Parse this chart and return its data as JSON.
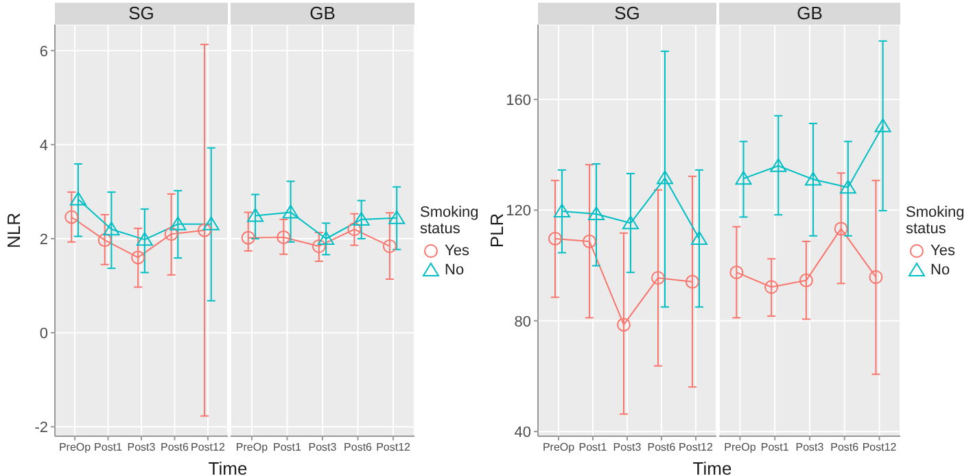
{
  "chart_data": [
    {
      "type": "line",
      "title": "SG",
      "xlabel": "Time",
      "ylabel": "NLR",
      "categories": [
        "PreOp",
        "Post1",
        "Post3",
        "Post6",
        "Post12"
      ],
      "ylim": [
        -2.2,
        6.55
      ],
      "yticks": [
        -2,
        0,
        2,
        4,
        6
      ],
      "grid": true,
      "legend": false,
      "line_style": "solid",
      "series": [
        {
          "color": "#f8766d",
          "marker": "circle",
          "values": [
            2.46,
            1.97,
            1.6,
            2.1,
            2.18
          ],
          "errors": [
            [
              1.93,
              2.99
            ],
            [
              1.45,
              2.51
            ],
            [
              0.97,
              2.22
            ],
            [
              1.23,
              2.95
            ],
            [
              -1.77,
              6.13
            ]
          ]
        },
        {
          "color": "#00bfc4",
          "marker": "triangle",
          "values": [
            2.84,
            2.2,
            1.98,
            2.31,
            2.31
          ],
          "errors": [
            [
              2.05,
              3.59
            ],
            [
              1.37,
              2.99
            ],
            [
              1.28,
              2.63
            ],
            [
              1.59,
              3.02
            ],
            [
              0.68,
              3.93
            ]
          ]
        }
      ]
    },
    {
      "type": "line",
      "title": "GB",
      "legend_title": "Smoking status",
      "categories": [
        "PreOp",
        "Post1",
        "Post3",
        "Post6",
        "Post12"
      ],
      "ylim": [
        -2.2,
        6.55
      ],
      "yticks": [
        -2,
        0,
        2,
        4,
        6
      ],
      "tick_labels": "x",
      "grid": true,
      "legend": "right",
      "line_style": "solid",
      "series": [
        {
          "name": "Yes",
          "color": "#f8766d",
          "marker": "circle",
          "values": [
            2.02,
            2.03,
            1.84,
            2.2,
            1.84
          ],
          "errors": [
            [
              1.74,
              2.56
            ],
            [
              1.67,
              2.41
            ],
            [
              1.52,
              2.13
            ],
            [
              1.86,
              2.53
            ],
            [
              1.14,
              2.55
            ]
          ]
        },
        {
          "name": "No",
          "color": "#00bfc4",
          "marker": "triangle",
          "values": [
            2.49,
            2.56,
            2.0,
            2.41,
            2.44
          ],
          "errors": [
            [
              2.0,
              2.94
            ],
            [
              1.93,
              3.22
            ],
            [
              1.66,
              2.33
            ],
            [
              2.0,
              2.81
            ],
            [
              1.77,
              3.1
            ]
          ]
        }
      ]
    },
    {
      "type": "line",
      "title": "SG",
      "xlabel": "Time",
      "ylabel": "PLR",
      "categories": [
        "PreOp",
        "Post1",
        "Post3",
        "Post6",
        "Post12"
      ],
      "ylim": [
        38.3,
        187
      ],
      "yticks": [
        40,
        80,
        120,
        160
      ],
      "grid": true,
      "legend": false,
      "line_style": "solid",
      "series": [
        {
          "color": "#f8766d",
          "marker": "circle",
          "values": [
            109.7,
            108.7,
            78.6,
            95.5,
            94.1
          ],
          "errors": [
            [
              88.5,
              130.7
            ],
            [
              81.1,
              136.4
            ],
            [
              46.3,
              111.7
            ],
            [
              63.7,
              127.3
            ],
            [
              56.1,
              132.2
            ]
          ]
        },
        {
          "color": "#00bfc4",
          "marker": "triangle",
          "values": [
            119.6,
            118.6,
            115.3,
            131.6,
            109.7
          ],
          "errors": [
            [
              104.6,
              134.5
            ],
            [
              99.9,
              136.7
            ],
            [
              97.5,
              133.2
            ],
            [
              85.0,
              177.4
            ],
            [
              85.0,
              134.5
            ]
          ]
        }
      ]
    },
    {
      "type": "line",
      "title": "GB",
      "legend_title": "Smoking status",
      "categories": [
        "PreOp",
        "Post1",
        "Post3",
        "Post6",
        "Post12"
      ],
      "ylim": [
        38.3,
        187
      ],
      "yticks": [
        40,
        80,
        120,
        160
      ],
      "tick_labels": "x",
      "grid": true,
      "legend": "right",
      "line_style": "solid",
      "series": [
        {
          "name": "Yes",
          "color": "#f8766d",
          "marker": "circle",
          "values": [
            97.5,
            92.2,
            94.6,
            113.3,
            95.8
          ],
          "errors": [
            [
              81.1,
              114.0
            ],
            [
              81.7,
              102.4
            ],
            [
              80.6,
              108.7
            ],
            [
              93.5,
              133.4
            ],
            [
              60.7,
              130.7
            ]
          ]
        },
        {
          "name": "No",
          "color": "#00bfc4",
          "marker": "triangle",
          "values": [
            131.4,
            136.0,
            131.1,
            128.2,
            150.4
          ],
          "errors": [
            [
              117.5,
              144.8
            ],
            [
              118.3,
              154.1
            ],
            [
              110.7,
              151.3
            ],
            [
              110.7,
              144.8
            ],
            [
              119.8,
              181.1
            ]
          ]
        }
      ]
    }
  ]
}
